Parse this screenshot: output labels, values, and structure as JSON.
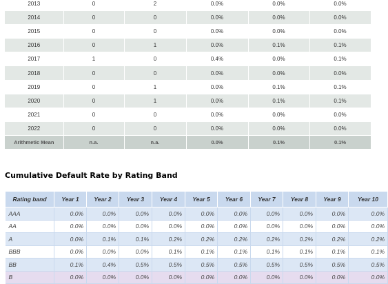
{
  "default_table": {
    "rows": [
      {
        "year": "2013",
        "c1": "0",
        "c2": "2",
        "c3": "0.0%",
        "c4": "0.0%",
        "c5": "0.0%"
      },
      {
        "year": "2014",
        "c1": "0",
        "c2": "0",
        "c3": "0.0%",
        "c4": "0.0%",
        "c5": "0.0%"
      },
      {
        "year": "2015",
        "c1": "0",
        "c2": "0",
        "c3": "0.0%",
        "c4": "0.0%",
        "c5": "0.0%"
      },
      {
        "year": "2016",
        "c1": "0",
        "c2": "1",
        "c3": "0.0%",
        "c4": "0.1%",
        "c5": "0.1%"
      },
      {
        "year": "2017",
        "c1": "1",
        "c2": "0",
        "c3": "0.4%",
        "c4": "0.0%",
        "c5": "0.1%"
      },
      {
        "year": "2018",
        "c1": "0",
        "c2": "0",
        "c3": "0.0%",
        "c4": "0.0%",
        "c5": "0.0%"
      },
      {
        "year": "2019",
        "c1": "0",
        "c2": "1",
        "c3": "0.0%",
        "c4": "0.1%",
        "c5": "0.1%"
      },
      {
        "year": "2020",
        "c1": "0",
        "c2": "1",
        "c3": "0.0%",
        "c4": "0.1%",
        "c5": "0.1%"
      },
      {
        "year": "2021",
        "c1": "0",
        "c2": "0",
        "c3": "0.0%",
        "c4": "0.0%",
        "c5": "0.0%"
      },
      {
        "year": "2022",
        "c1": "0",
        "c2": "0",
        "c3": "0.0%",
        "c4": "0.0%",
        "c5": "0.0%"
      }
    ],
    "mean": {
      "label": "Arithmetic Mean",
      "c1": "n.a.",
      "c2": "n.a.",
      "c3": "0.0%",
      "c4": "0.1%",
      "c5": "0.1%"
    }
  },
  "section_title": "Cumulative Default Rate by Rating Band",
  "band_table": {
    "headers": [
      "Rating band",
      "Year 1",
      "Year 2",
      "Year 3",
      "Year 4",
      "Year 5",
      "Year 6",
      "Year 7",
      "Year 8",
      "Year 9",
      "Year 10"
    ],
    "rows": [
      {
        "band": "AAA",
        "values": [
          "0.0%",
          "0.0%",
          "0.0%",
          "0.0%",
          "0.0%",
          "0.0%",
          "0.0%",
          "0.0%",
          "0.0%",
          "0.0%"
        ]
      },
      {
        "band": "AA",
        "values": [
          "0.0%",
          "0.0%",
          "0.0%",
          "0.0%",
          "0.0%",
          "0.0%",
          "0.0%",
          "0.0%",
          "0.0%",
          "0.0%"
        ]
      },
      {
        "band": "A",
        "values": [
          "0.0%",
          "0.1%",
          "0.1%",
          "0.2%",
          "0.2%",
          "0.2%",
          "0.2%",
          "0.2%",
          "0.2%",
          "0.2%"
        ]
      },
      {
        "band": "BBB",
        "values": [
          "0.0%",
          "0.0%",
          "0.0%",
          "0.1%",
          "0.1%",
          "0.1%",
          "0.1%",
          "0.1%",
          "0.1%",
          "0.1%"
        ]
      },
      {
        "band": "BB",
        "values": [
          "0.1%",
          "0.4%",
          "0.5%",
          "0.5%",
          "0.5%",
          "0.5%",
          "0.5%",
          "0.5%",
          "0.5%",
          "0.5%"
        ]
      },
      {
        "band": "B",
        "values": [
          "0.0%",
          "0.0%",
          "0.0%",
          "0.0%",
          "0.0%",
          "0.0%",
          "0.0%",
          "0.0%",
          "0.0%",
          "0.0%"
        ]
      }
    ]
  }
}
